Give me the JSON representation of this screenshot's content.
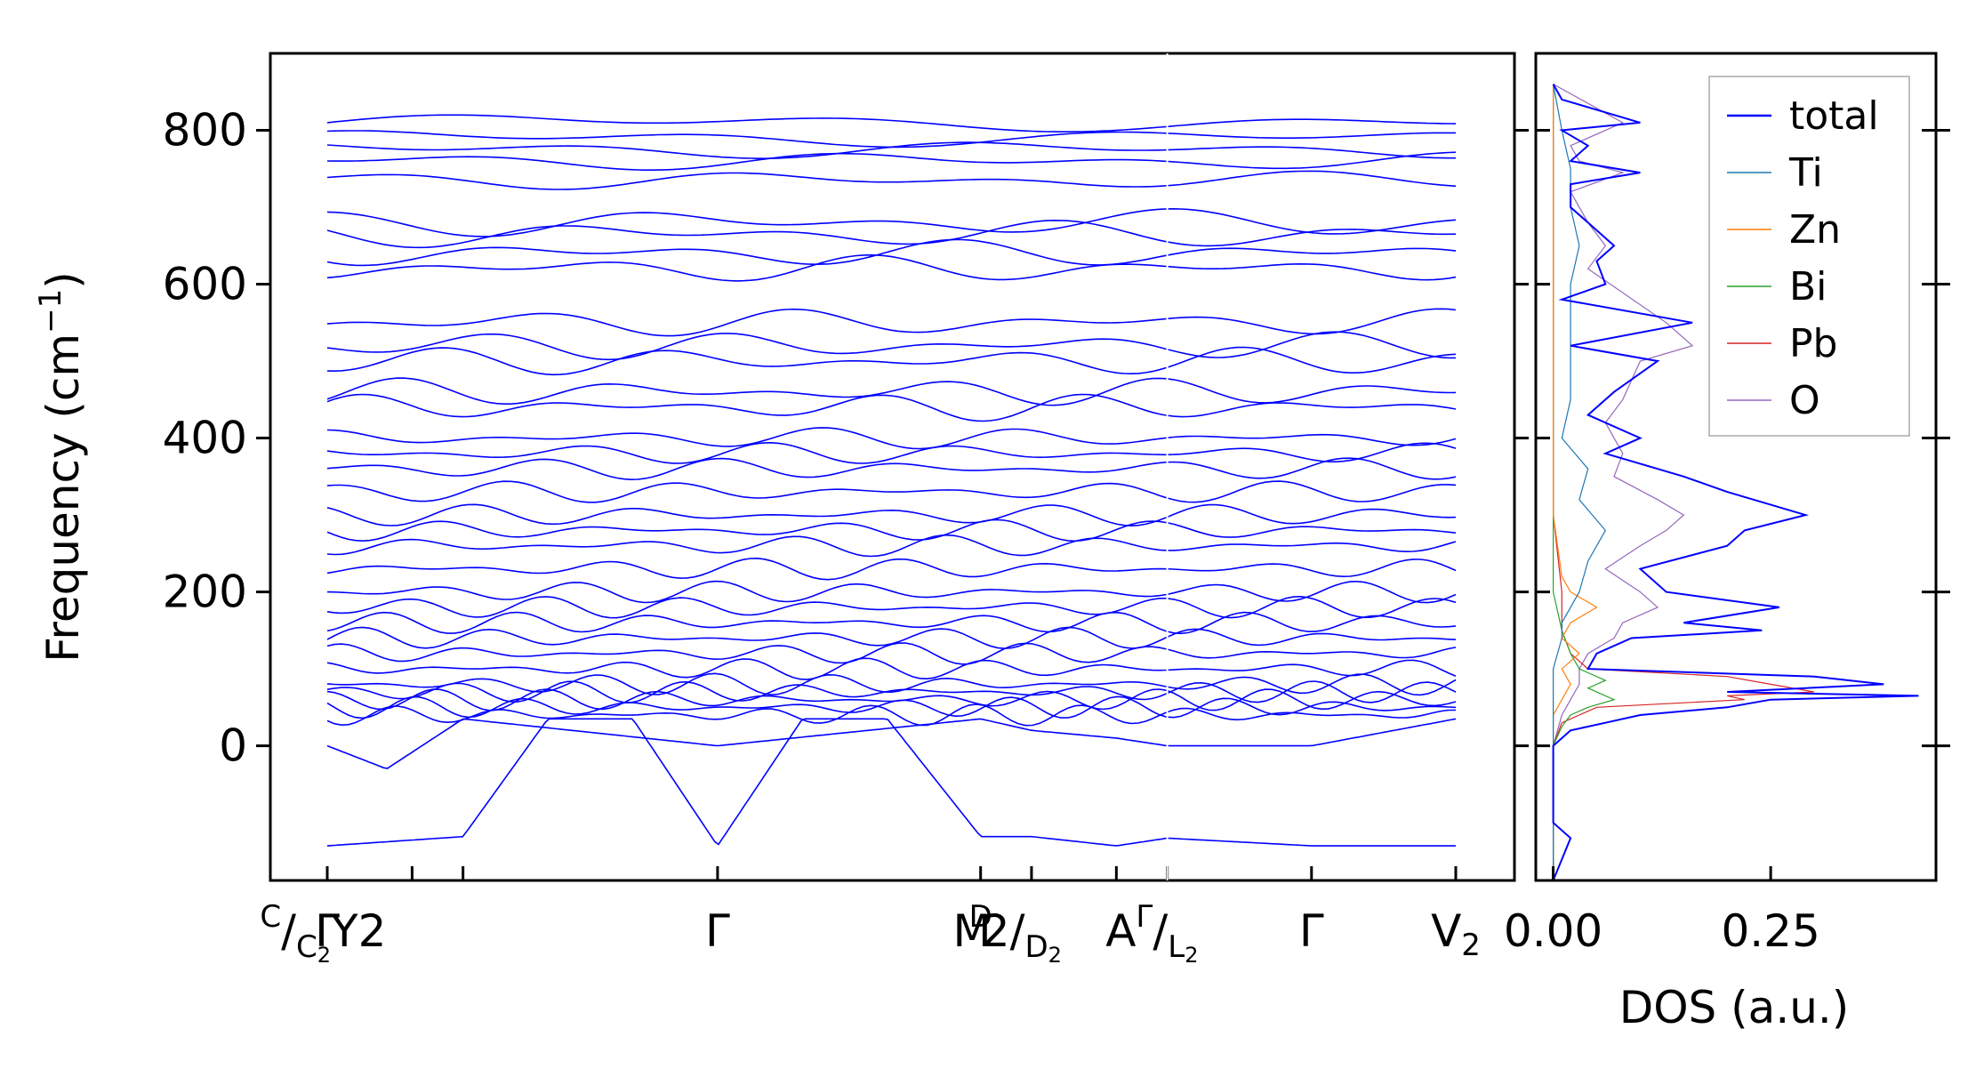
{
  "chart_data": [
    {
      "type": "line",
      "ylabel_text": "Frequency (cm",
      "ylabel_sup": "−1",
      "ylabel_close": ")",
      "ylim": [
        -175,
        900
      ],
      "yticks": [
        0,
        200,
        400,
        600,
        800
      ],
      "xlabels": [
        "Γ",
        "C",
        "C",
        "2",
        "Y",
        "2",
        "Γ",
        "M",
        "D",
        "2",
        "D",
        "2",
        "A",
        "Γ",
        "L",
        "2",
        "Γ",
        "V",
        "2"
      ],
      "x": [
        0,
        1,
        1.6,
        4.6,
        7.7,
        8.3,
        9.3,
        9.9,
        11.6,
        13.3
      ],
      "x_tick_positions": [
        0,
        1,
        1.6,
        4.6,
        7.7,
        8.3,
        9.3,
        9.9,
        11.6,
        13.3
      ],
      "x_break": 9.9,
      "color": "#0000ff",
      "lowest_branch": {
        "x": [
          0,
          1.6,
          2.6,
          3.6,
          4.6,
          5.6,
          6.6,
          7.7,
          8.3,
          9.3,
          9.9,
          11.6,
          13.3
        ],
        "values": [
          -130,
          -118,
          35,
          35,
          -130,
          35,
          35,
          -118,
          -118,
          -130,
          -120,
          -130,
          -130
        ]
      },
      "acoustic_branches": {
        "x": [
          0,
          0.7,
          1.6,
          4.6,
          7.7,
          8.3,
          9.3,
          9.9,
          11.6,
          13.3
        ],
        "values": [
          0,
          -30,
          35,
          0,
          35,
          20,
          10,
          0,
          0,
          35
        ]
      },
      "notable_band_values": [
        810,
        790,
        775,
        760,
        735,
        680,
        665,
        640,
        620,
        550,
        520,
        500,
        460,
        440,
        400,
        380,
        360,
        330,
        300,
        280,
        260,
        230,
        200,
        180,
        160,
        140,
        120,
        100,
        80,
        70,
        60,
        50,
        40
      ]
    },
    {
      "type": "line",
      "orientation": "horizontal",
      "xlabel": "DOS (a.u.)",
      "xticklabels": [
        "0.00",
        "0.25"
      ],
      "xlim": [
        -0.02,
        0.44
      ],
      "ylim": [
        -175,
        900
      ],
      "legend_position": "upper right",
      "series": [
        {
          "name": "total",
          "color": "#0000ff",
          "freq": [
            860,
            840,
            810,
            800,
            780,
            760,
            745,
            730,
            700,
            680,
            650,
            630,
            600,
            580,
            550,
            520,
            500,
            460,
            430,
            400,
            380,
            350,
            330,
            300,
            280,
            260,
            230,
            200,
            180,
            160,
            150,
            140,
            120,
            100,
            90,
            80,
            70,
            65,
            60,
            50,
            40,
            30,
            20,
            0,
            -100,
            -120,
            -175
          ],
          "values": [
            0.0,
            0.01,
            0.1,
            0.01,
            0.04,
            0.02,
            0.1,
            0.02,
            0.02,
            0.04,
            0.07,
            0.05,
            0.06,
            0.01,
            0.16,
            0.02,
            0.12,
            0.07,
            0.04,
            0.1,
            0.06,
            0.15,
            0.2,
            0.29,
            0.22,
            0.2,
            0.1,
            0.13,
            0.26,
            0.15,
            0.24,
            0.09,
            0.05,
            0.04,
            0.3,
            0.38,
            0.2,
            0.42,
            0.25,
            0.2,
            0.1,
            0.06,
            0.02,
            0.0,
            0.0,
            0.02,
            0.0
          ]
        },
        {
          "name": "Ti",
          "color": "#1f77b4",
          "freq": [
            860,
            800,
            750,
            700,
            650,
            600,
            550,
            500,
            450,
            400,
            360,
            320,
            280,
            240,
            200,
            180,
            160,
            140,
            100,
            60,
            20,
            0,
            -175
          ],
          "values": [
            0.0,
            0.01,
            0.02,
            0.02,
            0.03,
            0.02,
            0.02,
            0.02,
            0.02,
            0.01,
            0.04,
            0.03,
            0.06,
            0.04,
            0.03,
            0.02,
            0.01,
            0.01,
            0.0,
            0.0,
            0.0,
            0.0,
            0.0
          ]
        },
        {
          "name": "Zn",
          "color": "#ff7f0e",
          "freq": [
            860,
            300,
            220,
            200,
            180,
            160,
            140,
            120,
            100,
            80,
            60,
            40,
            20,
            0,
            -175
          ],
          "values": [
            0.0,
            0.0,
            0.01,
            0.02,
            0.05,
            0.02,
            0.01,
            0.03,
            0.01,
            0.02,
            0.01,
            0.0,
            0.0,
            0.0,
            0.0
          ]
        },
        {
          "name": "Bi",
          "color": "#2ca02c",
          "freq": [
            860,
            200,
            150,
            120,
            100,
            85,
            75,
            60,
            50,
            40,
            25,
            0,
            -175
          ],
          "values": [
            0.0,
            0.0,
            0.01,
            0.02,
            0.03,
            0.06,
            0.04,
            0.07,
            0.04,
            0.02,
            0.01,
            0.0,
            0.0
          ]
        },
        {
          "name": "Pb",
          "color": "#d62728",
          "freq": [
            860,
            300,
            200,
            150,
            120,
            100,
            90,
            80,
            70,
            65,
            60,
            50,
            30,
            0,
            -175
          ],
          "values": [
            0.0,
            0.0,
            0.01,
            0.01,
            0.02,
            0.04,
            0.2,
            0.25,
            0.3,
            0.2,
            0.22,
            0.05,
            0.01,
            0.0,
            0.0
          ]
        },
        {
          "name": "O",
          "color": "#9467bd",
          "freq": [
            860,
            810,
            780,
            760,
            745,
            720,
            680,
            650,
            620,
            550,
            520,
            500,
            450,
            420,
            380,
            350,
            320,
            300,
            280,
            260,
            230,
            200,
            180,
            160,
            140,
            120,
            100,
            80,
            60,
            40,
            0,
            -175
          ],
          "values": [
            0.0,
            0.08,
            0.02,
            0.03,
            0.08,
            0.02,
            0.04,
            0.06,
            0.04,
            0.13,
            0.16,
            0.1,
            0.08,
            0.06,
            0.08,
            0.07,
            0.12,
            0.15,
            0.13,
            0.1,
            0.06,
            0.1,
            0.12,
            0.08,
            0.07,
            0.04,
            0.03,
            0.03,
            0.02,
            0.01,
            0.0,
            0.0
          ]
        }
      ]
    }
  ]
}
